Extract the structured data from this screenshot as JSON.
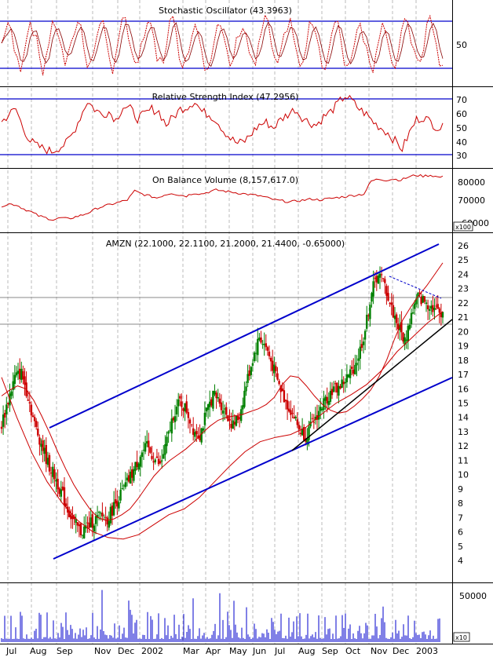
{
  "chart_data": [
    {
      "type": "line",
      "title": "Stochastic Oscillator (43.3963)",
      "yticks": [
        "50"
      ],
      "reference_levels": [
        80,
        20
      ],
      "colors": {
        "line": "#cc0000",
        "reference": "#0000cc"
      }
    },
    {
      "type": "line",
      "title": "Relative Strength Index (47.2956)",
      "yticks": [
        "70",
        "60",
        "50",
        "40",
        "30"
      ],
      "ylim": [
        20,
        75
      ],
      "reference_levels": [
        70,
        30
      ],
      "values": [
        52,
        58,
        62,
        48,
        38,
        34,
        32,
        30,
        33,
        36,
        44,
        56,
        68,
        62,
        58,
        60,
        54,
        64,
        62,
        55,
        58,
        62,
        60,
        50,
        56,
        62,
        64,
        68,
        60,
        58,
        54,
        46,
        40,
        36,
        38,
        44,
        50,
        52,
        48,
        54,
        58,
        62,
        56,
        52,
        50,
        56,
        60,
        66,
        72,
        68,
        62,
        58,
        52,
        48,
        44,
        38,
        32,
        44,
        54,
        56,
        52,
        48
      ],
      "colors": {
        "line": "#cc0000",
        "reference": "#0000cc"
      }
    },
    {
      "type": "line",
      "title": "On Balance Volume (8,157,617.0)",
      "yticks": [
        "80000",
        "70000",
        "60000"
      ],
      "ylim": [
        55000,
        85000
      ],
      "multiplier": "x100",
      "values": [
        67500,
        68500,
        68000,
        66000,
        64500,
        62500,
        61500,
        60500,
        61500,
        61000,
        62000,
        63000,
        64500,
        66500,
        67500,
        68500,
        69500,
        70500,
        75000,
        73500,
        72500,
        71500,
        73000,
        74000,
        73000,
        72500,
        74000,
        73500,
        74500,
        75500,
        75000,
        74500,
        74000,
        73500,
        73000,
        72500,
        71500,
        70500,
        70000,
        69500,
        70000,
        70500,
        71000,
        70500,
        71000,
        71500,
        72000,
        72500,
        73000,
        73500,
        80000,
        81000,
        80500,
        81000,
        80500,
        82000,
        83000,
        82500,
        83000,
        82000
      ],
      "colors": {
        "line": "#cc0000"
      }
    },
    {
      "type": "candlestick",
      "title": "AMZN (22.1000, 22.1100, 21.2000, 21.4400, -0.65000)",
      "yticks": [
        "26",
        "25",
        "24",
        "23",
        "22",
        "21",
        "20",
        "19",
        "18",
        "17",
        "16",
        "15",
        "14",
        "13",
        "12",
        "11",
        "10",
        "9",
        "8",
        "7",
        "6",
        "5",
        "4"
      ],
      "ylim": [
        4,
        26
      ],
      "reference_levels": [
        22.8,
        20.8
      ],
      "price": [
        13.5,
        15.2,
        16.8,
        17.1,
        15.5,
        13.5,
        12.2,
        10.8,
        9.9,
        8.8,
        7.6,
        6.6,
        6.0,
        6.4,
        6.8,
        7.1,
        6.9,
        7.8,
        8.6,
        9.4,
        10.3,
        11.4,
        11.9,
        11.2,
        10.6,
        12.3,
        14.2,
        15.1,
        14.5,
        13.2,
        12.8,
        14.3,
        15.6,
        15.1,
        14.3,
        13.4,
        14.1,
        16.3,
        18.1,
        19.6,
        18.9,
        17.6,
        16.2,
        15.1,
        14.3,
        13.2,
        12.7,
        13.5,
        14.4,
        15.2,
        15.9,
        16.1,
        16.6,
        17.2,
        18.3,
        20.1,
        22.8,
        24.1,
        23.2,
        21.6,
        20.4,
        19.3,
        21.2,
        22.4,
        22.1,
        21.8,
        21.4
      ],
      "moving_average": [
        15.5,
        15.9,
        16.2,
        16.0,
        15.2,
        14.1,
        12.9,
        11.6,
        10.4,
        9.3,
        8.4,
        7.6,
        7.0,
        6.8,
        6.9,
        7.2,
        7.6,
        8.3,
        9.1,
        9.9,
        10.5,
        11.0,
        11.4,
        11.8,
        12.3,
        12.9,
        13.4,
        13.8,
        14.0,
        14.1,
        14.2,
        14.4,
        14.6,
        14.9,
        15.4,
        16.3,
        16.9,
        16.8,
        16.2,
        15.5,
        14.9,
        14.5,
        14.3,
        14.4,
        14.8,
        15.3,
        15.9,
        16.8,
        18.0,
        19.5,
        20.8,
        21.7,
        22.5,
        23.2,
        24.0,
        24.8
      ],
      "long_average": [
        16.8,
        14.0,
        11.5,
        9.5,
        8.0,
        6.8,
        6.0,
        5.6,
        5.5,
        5.8,
        6.5,
        7.2,
        7.6,
        8.4,
        9.5,
        10.6,
        11.6,
        12.3,
        12.6,
        12.8,
        13.3,
        14.2,
        15.0,
        15.6,
        16.3,
        17.3,
        18.6,
        19.6,
        20.6,
        21.4
      ],
      "trend_lines": [
        {
          "from": [
            "Aug",
            13.8
          ],
          "to": [
            "Dec",
            26.2
          ],
          "color": "#0000cc"
        },
        {
          "from": [
            "Sep",
            5.2
          ],
          "to": [
            "2003",
            17.2
          ],
          "color": "#0000cc"
        },
        {
          "from": [
            "Jul",
            12.3
          ],
          "to": [
            "2003",
            21.0
          ],
          "color": "#000000"
        }
      ],
      "colors": {
        "up": "#008000",
        "down": "#cc0000",
        "average": "#cc0000",
        "trend": "#0000cc"
      }
    },
    {
      "type": "bar",
      "title": "",
      "yticks": [
        "50000"
      ],
      "ylim": [
        0,
        60000
      ],
      "multiplier": "x10",
      "colors": {
        "bars": "#0000cc"
      }
    }
  ],
  "x_axis": {
    "labels": [
      "Jul",
      "Aug",
      "Sep",
      "Nov",
      "Dec",
      "2002",
      "Mar",
      "Apr",
      "May",
      "Jun",
      "Jul",
      "Aug",
      "Sep",
      "Oct",
      "Nov",
      "Dec",
      "2003"
    ]
  }
}
